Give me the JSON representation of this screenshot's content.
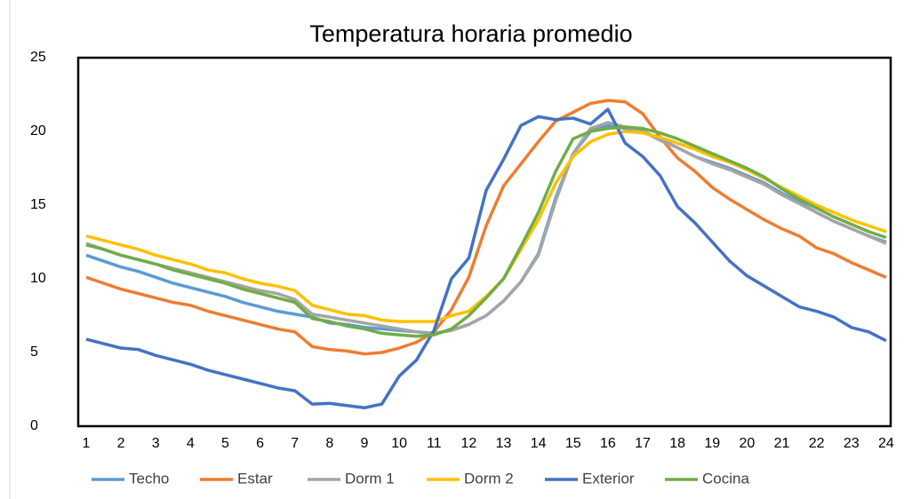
{
  "chart_data": {
    "type": "line",
    "title": "Temperatura horaria promedio",
    "x": [
      1,
      1.5,
      2,
      2.5,
      3,
      3.5,
      4,
      4.5,
      5,
      5.5,
      6,
      6.5,
      7,
      7.5,
      8,
      8.5,
      9,
      9.5,
      10,
      10.5,
      11,
      11.5,
      12,
      12.5,
      13,
      13.5,
      14,
      14.5,
      15,
      15.5,
      16,
      16.5,
      17,
      17.5,
      18,
      18.5,
      19,
      19.5,
      20,
      20.5,
      21,
      21.5,
      22,
      22.5,
      23,
      23.5,
      24
    ],
    "xlim": [
      0.77,
      24.13
    ],
    "xticks": [
      1,
      2,
      3,
      4,
      5,
      6,
      7,
      8,
      9,
      10,
      11,
      12,
      13,
      14,
      15,
      16,
      17,
      18,
      19,
      20,
      21,
      22,
      23,
      24
    ],
    "ylim": [
      0,
      25
    ],
    "yticks": [
      0,
      5,
      10,
      15,
      20,
      25
    ],
    "legend": "bottom",
    "series": [
      {
        "name": "Techo",
        "color": "#5B9BD5",
        "values": [
          11.6,
          11.2,
          10.8,
          10.5,
          10.1,
          9.7,
          9.4,
          9.1,
          8.8,
          8.4,
          8.1,
          7.8,
          7.6,
          7.4,
          7.0,
          6.9,
          6.7,
          6.6,
          6.5,
          6.4,
          6.3,
          6.5,
          6.9,
          7.5,
          8.5,
          9.8,
          11.7,
          15.5,
          18.5,
          20.0,
          20.4,
          20.2,
          20.0,
          19.5,
          18.9,
          18.3,
          17.9,
          17.5,
          17.0,
          16.5,
          15.8,
          15.2,
          14.5,
          13.9,
          13.4,
          12.9,
          12.5
        ]
      },
      {
        "name": "Estar",
        "color": "#ED7D31",
        "values": [
          10.1,
          9.7,
          9.3,
          9.0,
          8.7,
          8.4,
          8.2,
          7.8,
          7.5,
          7.2,
          6.9,
          6.6,
          6.4,
          5.4,
          5.2,
          5.1,
          4.9,
          5.0,
          5.3,
          5.7,
          6.4,
          7.9,
          10.1,
          13.6,
          16.3,
          17.8,
          19.3,
          20.7,
          21.3,
          21.9,
          22.1,
          22.0,
          21.2,
          19.6,
          18.2,
          17.3,
          16.2,
          15.4,
          14.7,
          14.0,
          13.4,
          12.9,
          12.1,
          11.7,
          11.1,
          10.6,
          10.1
        ]
      },
      {
        "name": "Dorm 1",
        "color": "#A5A5A5",
        "values": [
          12.4,
          12.0,
          11.6,
          11.3,
          11.0,
          10.7,
          10.4,
          10.1,
          9.8,
          9.5,
          9.2,
          9.0,
          8.6,
          7.6,
          7.4,
          7.2,
          7.0,
          6.8,
          6.6,
          6.4,
          6.3,
          6.5,
          6.9,
          7.5,
          8.5,
          9.8,
          11.6,
          15.3,
          18.5,
          20.2,
          20.6,
          20.3,
          20.0,
          19.4,
          18.9,
          18.3,
          17.8,
          17.4,
          16.9,
          16.4,
          15.7,
          15.1,
          14.5,
          13.9,
          13.4,
          12.9,
          12.4
        ]
      },
      {
        "name": "Dorm 2",
        "color": "#FFC000",
        "values": [
          12.9,
          12.6,
          12.3,
          12.0,
          11.6,
          11.3,
          11.0,
          10.6,
          10.4,
          10.0,
          9.7,
          9.5,
          9.2,
          8.2,
          7.9,
          7.6,
          7.5,
          7.2,
          7.1,
          7.1,
          7.1,
          7.5,
          7.8,
          8.8,
          10.0,
          12.0,
          14.0,
          16.5,
          18.3,
          19.3,
          19.8,
          20.0,
          19.9,
          19.6,
          19.2,
          18.8,
          18.3,
          17.9,
          17.4,
          16.8,
          16.2,
          15.6,
          15.0,
          14.5,
          14.0,
          13.6,
          13.2
        ]
      },
      {
        "name": "Exterior",
        "color": "#4472C4",
        "values": [
          5.9,
          5.6,
          5.3,
          5.2,
          4.8,
          4.5,
          4.2,
          3.8,
          3.5,
          3.2,
          2.9,
          2.6,
          2.4,
          1.5,
          1.55,
          1.4,
          1.25,
          1.5,
          3.4,
          4.5,
          6.5,
          10.0,
          11.4,
          16.0,
          18.1,
          20.4,
          21.0,
          20.8,
          20.9,
          20.5,
          21.5,
          19.2,
          18.3,
          17.0,
          14.9,
          13.8,
          12.5,
          11.2,
          10.2,
          9.5,
          8.8,
          8.1,
          7.8,
          7.4,
          6.7,
          6.4,
          5.8
        ]
      },
      {
        "name": "Cocina",
        "color": "#70AD47",
        "values": [
          12.3,
          12.0,
          11.6,
          11.3,
          11.0,
          10.6,
          10.3,
          10.0,
          9.7,
          9.3,
          9.0,
          8.7,
          8.4,
          7.3,
          7.1,
          6.8,
          6.6,
          6.3,
          6.2,
          6.1,
          6.2,
          6.6,
          7.5,
          8.7,
          10.0,
          12.2,
          14.5,
          17.3,
          19.5,
          20.0,
          20.2,
          20.3,
          20.2,
          19.9,
          19.5,
          19.0,
          18.5,
          18.0,
          17.5,
          16.9,
          16.1,
          15.4,
          14.8,
          14.2,
          13.7,
          13.2,
          12.8
        ]
      }
    ]
  }
}
